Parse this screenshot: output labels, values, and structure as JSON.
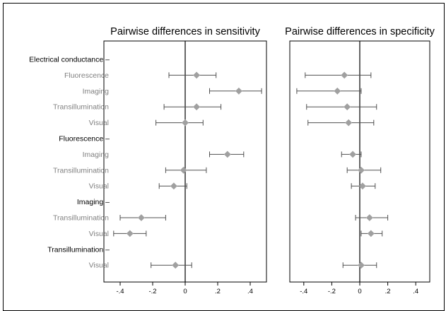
{
  "chart_data": {
    "type": "scatter",
    "style": "forest-plot with 95% CI error bars",
    "colors": {
      "marker": "#a0a0a0",
      "ci": "#505050",
      "zero_line": "#000000",
      "group_label": "#000000",
      "comparison_label": "#808080"
    },
    "xlim": [
      -0.5,
      0.5
    ],
    "xticks": [
      "-.4",
      "-.2",
      "0",
      ".2",
      ".4"
    ],
    "xtick_values": [
      -0.4,
      -0.2,
      0,
      0.2,
      0.4
    ],
    "rows": [
      {
        "label": "Electrical conductance –",
        "kind": "group"
      },
      {
        "label": "Fluorescence",
        "kind": "item"
      },
      {
        "label": "Imaging",
        "kind": "item"
      },
      {
        "label": "Transillumination",
        "kind": "item"
      },
      {
        "label": "Visual",
        "kind": "item"
      },
      {
        "label": "Fluorescence –",
        "kind": "group"
      },
      {
        "label": "Imaging",
        "kind": "item"
      },
      {
        "label": "Transillumination",
        "kind": "item"
      },
      {
        "label": "Visual",
        "kind": "item"
      },
      {
        "label": "Imaging –",
        "kind": "group"
      },
      {
        "label": "Transillumination",
        "kind": "item"
      },
      {
        "label": "Visual",
        "kind": "item"
      },
      {
        "label": "Transillumination –",
        "kind": "group"
      },
      {
        "label": "Visual",
        "kind": "item"
      }
    ],
    "panels": [
      {
        "title": "Pairwise differences in sensitivity",
        "points": [
          null,
          {
            "est": 0.07,
            "lo": -0.1,
            "hi": 0.19
          },
          {
            "est": 0.33,
            "lo": 0.15,
            "hi": 0.47
          },
          {
            "est": 0.07,
            "lo": -0.13,
            "hi": 0.22
          },
          {
            "est": 0.0,
            "lo": -0.18,
            "hi": 0.11
          },
          null,
          {
            "est": 0.26,
            "lo": 0.15,
            "hi": 0.36
          },
          {
            "est": -0.01,
            "lo": -0.12,
            "hi": 0.13
          },
          {
            "est": -0.07,
            "lo": -0.16,
            "hi": 0.01
          },
          null,
          {
            "est": -0.27,
            "lo": -0.4,
            "hi": -0.12
          },
          {
            "est": -0.34,
            "lo": -0.44,
            "hi": -0.24
          },
          null,
          {
            "est": -0.06,
            "lo": -0.21,
            "hi": 0.04
          }
        ]
      },
      {
        "title": "Pairwise differences in specificity",
        "points": [
          null,
          {
            "est": -0.11,
            "lo": -0.39,
            "hi": 0.08
          },
          {
            "est": -0.16,
            "lo": -0.45,
            "hi": 0.01
          },
          {
            "est": -0.09,
            "lo": -0.38,
            "hi": 0.12
          },
          {
            "est": -0.08,
            "lo": -0.37,
            "hi": 0.1
          },
          null,
          {
            "est": -0.05,
            "lo": -0.13,
            "hi": 0.01
          },
          {
            "est": 0.01,
            "lo": -0.09,
            "hi": 0.15
          },
          {
            "est": 0.02,
            "lo": -0.06,
            "hi": 0.11
          },
          null,
          {
            "est": 0.07,
            "lo": -0.03,
            "hi": 0.2
          },
          {
            "est": 0.08,
            "lo": 0.01,
            "hi": 0.16
          },
          null,
          {
            "est": 0.01,
            "lo": -0.12,
            "hi": 0.12
          }
        ]
      }
    ]
  }
}
